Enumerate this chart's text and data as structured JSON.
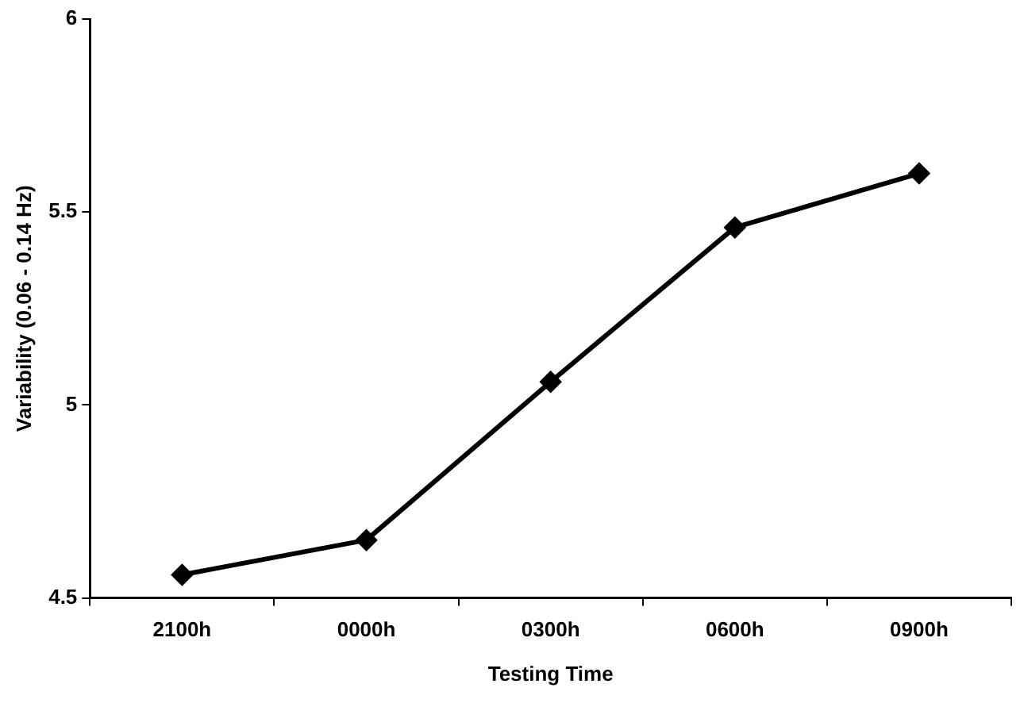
{
  "chart_data": {
    "type": "line",
    "xlabel": "Testing Time",
    "ylabel": "Variability (0.06 - 0.14 Hz)",
    "categories": [
      "2100h",
      "0000h",
      "0300h",
      "0600h",
      "0900h"
    ],
    "series": [
      {
        "color": "#000000",
        "values": [
          4.56,
          4.65,
          5.06,
          5.46,
          5.6
        ]
      }
    ],
    "ylim": [
      4.5,
      6
    ],
    "yticks": [
      4.5,
      5,
      5.5,
      6
    ],
    "grid": false,
    "legend": false,
    "marker": "diamond",
    "line_style": "solid"
  }
}
